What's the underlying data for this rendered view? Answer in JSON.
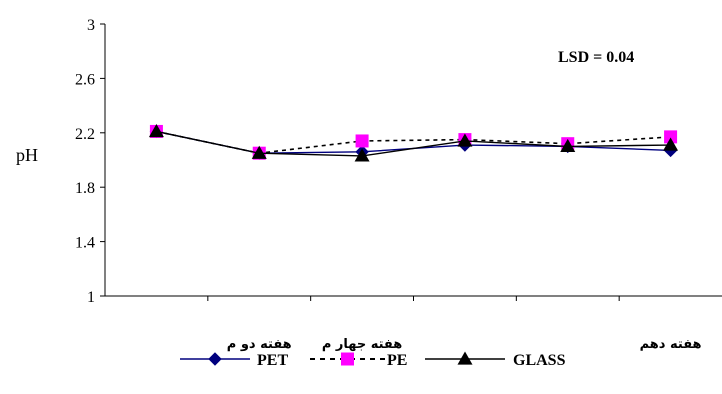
{
  "chart_data": {
    "type": "line",
    "title": "",
    "xlabel": "",
    "ylabel": "pH",
    "ylim": [
      1,
      3
    ],
    "y_ticks": [
      1,
      1.4,
      1.8,
      2.2,
      2.6,
      3
    ],
    "categories": [
      "",
      "هفته دو م",
      "هفته جهار م",
      "",
      "",
      "هفته دهم"
    ],
    "annotation": "LSD = 0.04",
    "grid": false,
    "legend_position": "bottom",
    "series": [
      {
        "name": "PET",
        "color": "#00007F",
        "marker": "diamond",
        "dash": "solid",
        "values": [
          2.21,
          2.05,
          2.06,
          2.11,
          2.1,
          2.07
        ]
      },
      {
        "name": "PE",
        "color": "#FF00FF",
        "line_color": "#000000",
        "marker": "square",
        "dash": "dashed",
        "values": [
          2.21,
          2.05,
          2.14,
          2.15,
          2.12,
          2.17
        ]
      },
      {
        "name": "GLASS",
        "color": "#000000",
        "marker": "triangle",
        "dash": "solid",
        "values": [
          2.21,
          2.05,
          2.03,
          2.14,
          2.1,
          2.11
        ]
      }
    ]
  }
}
